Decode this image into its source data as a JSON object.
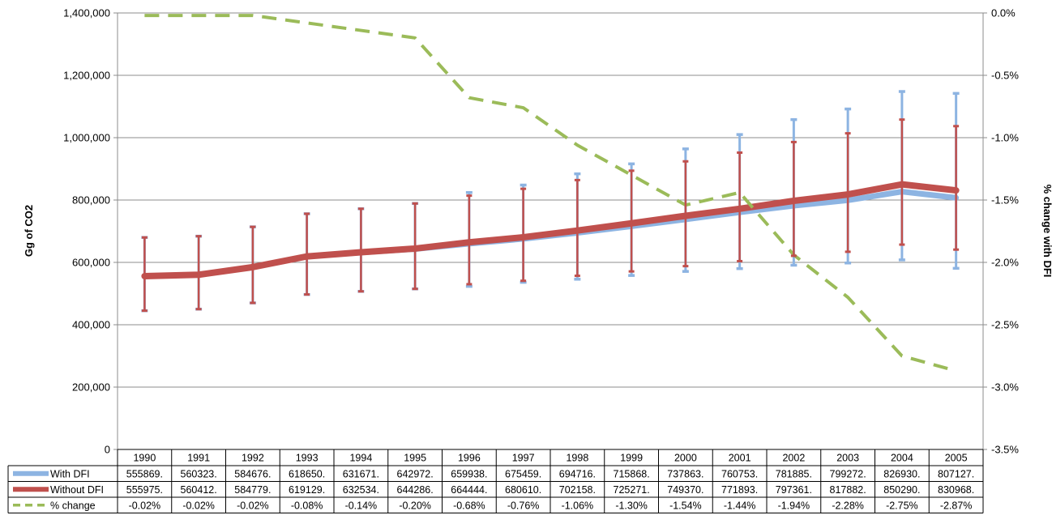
{
  "chart_data": {
    "type": "line",
    "xlabel": "",
    "ylabel": "Gg of CO2",
    "y2label": "% change with DFI",
    "ylim": [
      0,
      1400000
    ],
    "y2lim": [
      -3.5,
      0
    ],
    "y_ticks": [
      "0",
      "200,000",
      "400,000",
      "600,000",
      "800,000",
      "1,000,000",
      "1,200,000",
      "1,400,000"
    ],
    "y2_ticks": [
      "-3.5%",
      "-3.0%",
      "-2.5%",
      "-2.0%",
      "-1.5%",
      "-1.0%",
      "-0.5%",
      "0.0%"
    ],
    "grid": true,
    "legend": "data-table-rows",
    "categories": [
      "1990",
      "1991",
      "1992",
      "1993",
      "1994",
      "1995",
      "1996",
      "1997",
      "1998",
      "1999",
      "2000",
      "2001",
      "2002",
      "2003",
      "2004",
      "2005"
    ],
    "series": [
      {
        "name": "With DFI",
        "color": "#8db4e2",
        "values": [
          555869,
          560323,
          584676,
          618650,
          631671,
          642972,
          659938,
          675459,
          694716,
          715868,
          737863,
          760753,
          781885,
          799272,
          826930,
          807127
        ],
        "table_values": [
          "555869.",
          "560323.",
          "584676.",
          "618650.",
          "631671.",
          "642972.",
          "659938.",
          "675459.",
          "694716.",
          "715868.",
          "737863.",
          "760753.",
          "781885.",
          "799272.",
          "826930.",
          "807127."
        ],
        "error_upper": [
          680000,
          684000,
          714000,
          756000,
          772000,
          789000,
          824000,
          848000,
          884000,
          916000,
          964000,
          1010000,
          1058000,
          1092000,
          1148000,
          1142000
        ],
        "error_lower": [
          445000,
          450000,
          470000,
          497000,
          507000,
          515000,
          523000,
          536000,
          546000,
          558000,
          571000,
          580000,
          591000,
          598000,
          608000,
          581000
        ]
      },
      {
        "name": "Without DFI",
        "color": "#c0504d",
        "values": [
          555975,
          560412,
          584779,
          619129,
          632534,
          644286,
          664444,
          680610,
          702158,
          725271,
          749370,
          771893,
          797361,
          817882,
          850290,
          830968
        ],
        "table_values": [
          "555975.",
          "560412.",
          "584779.",
          "619129.",
          "632534.",
          "644286.",
          "664444.",
          "680610.",
          "702158.",
          "725271.",
          "749370.",
          "771893.",
          "797361.",
          "817882.",
          "850290.",
          "830968."
        ],
        "error_upper": [
          680000,
          684000,
          714000,
          756000,
          772000,
          789000,
          814000,
          836000,
          864000,
          894000,
          924000,
          952000,
          986000,
          1014000,
          1058000,
          1037000
        ],
        "error_lower": [
          445000,
          450000,
          470000,
          497000,
          507000,
          515000,
          530000,
          541000,
          557000,
          571000,
          588000,
          604000,
          621000,
          634000,
          657000,
          641000
        ]
      },
      {
        "name": "% change",
        "color": "#9bbb59",
        "axis": "right",
        "values": [
          -0.02,
          -0.02,
          -0.02,
          -0.08,
          -0.14,
          -0.2,
          -0.68,
          -0.76,
          -1.06,
          -1.3,
          -1.54,
          -1.44,
          -1.94,
          -2.28,
          -2.75,
          -2.87
        ],
        "table_values": [
          "-0.02%",
          "-0.02%",
          "-0.02%",
          "-0.08%",
          "-0.14%",
          "-0.20%",
          "-0.68%",
          "-0.76%",
          "-1.06%",
          "-1.30%",
          "-1.54%",
          "-1.44%",
          "-1.94%",
          "-2.28%",
          "-2.75%",
          "-2.87%"
        ]
      }
    ]
  }
}
